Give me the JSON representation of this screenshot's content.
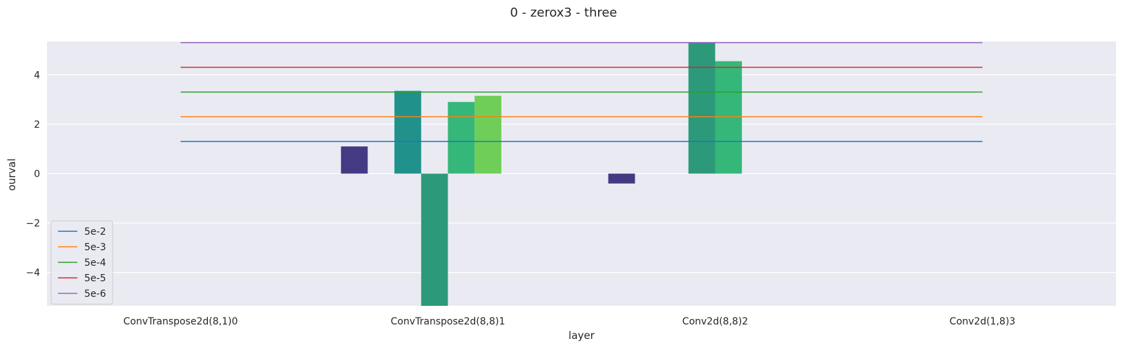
{
  "chart_data": {
    "type": "bar",
    "title": "0 - zerox3 - three",
    "xlabel": "layer",
    "ylabel": "ourval",
    "ylim": [
      -5.35,
      5.35
    ],
    "yticks": [
      -4,
      -2,
      0,
      2,
      4
    ],
    "ytick_labels": [
      "−4",
      "−2",
      "0",
      "2",
      "4"
    ],
    "categories": [
      "ConvTranspose2d(8,1)0",
      "ConvTranspose2d(8,8)1",
      "Conv2d(8,8)2",
      "Conv2d(1,8)3"
    ],
    "grid": true,
    "background": "#eaeaf2",
    "bar_palette": [
      "#443a83",
      "#31688e",
      "#21918c",
      "#2c9a7a",
      "#35b779",
      "#6ece58",
      "#b5de2b",
      "#fde725"
    ],
    "bar_series": [
      {
        "values": [
          null,
          1.1,
          -0.4,
          null
        ]
      },
      {
        "values": [
          null,
          null,
          null,
          null
        ]
      },
      {
        "values": [
          null,
          3.35,
          null,
          null
        ]
      },
      {
        "values": [
          null,
          -5.35,
          5.3,
          null
        ]
      },
      {
        "values": [
          null,
          2.9,
          4.55,
          null
        ]
      },
      {
        "values": [
          null,
          3.15,
          null,
          null
        ]
      },
      {
        "values": [
          null,
          null,
          null,
          null
        ]
      },
      {
        "values": [
          null,
          null,
          null,
          null
        ]
      }
    ],
    "reference_lines": [
      {
        "name": "5e-2",
        "value": 1.301,
        "color": "#1f77b4"
      },
      {
        "name": "5e-3",
        "value": 2.301,
        "color": "#ff7f0e"
      },
      {
        "name": "5e-4",
        "value": 3.301,
        "color": "#2ca02c"
      },
      {
        "name": "5e-5",
        "value": 4.301,
        "color": "#d62728"
      },
      {
        "name": "5e-6",
        "value": 5.301,
        "color": "#9467bd"
      }
    ],
    "legend_position": "lower-left"
  }
}
